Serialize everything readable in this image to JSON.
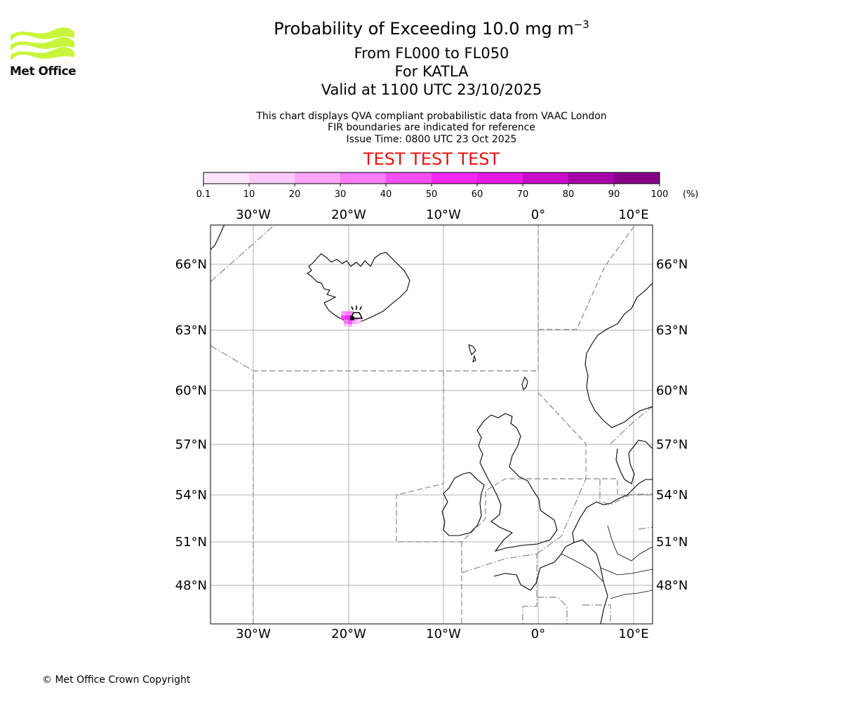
{
  "header": {
    "logo_text": "Met Office",
    "title_main": "Probability of Exceeding 10.0 mg m",
    "title_superscript": "−3",
    "title_level": "From FL000 to FL050",
    "title_volcano": "For KATLA",
    "title_valid": "Valid at 1100 UTC 23/10/2025"
  },
  "info": {
    "line1": "This chart displays QVA compliant probabilistic data from VAAC London",
    "line2": "FIR boundaries are indicated for reference",
    "line3": "Issue Time: 0800 UTC 23 Oct 2025"
  },
  "test_banner": "TEST TEST TEST",
  "colorbar": {
    "unit": "(%)",
    "ticks": [
      "0.1",
      "10",
      "20",
      "30",
      "40",
      "50",
      "60",
      "70",
      "80",
      "90",
      "100"
    ],
    "colors": [
      "#ffe6fd",
      "#fdcafb",
      "#fba6f8",
      "#f97cf6",
      "#f64ff4",
      "#f428f4",
      "#e61ae6",
      "#c70dc8",
      "#a600a9",
      "#860089",
      "#60005f"
    ]
  },
  "map": {
    "lon_labels": [
      "30°W",
      "20°W",
      "10°W",
      "0°",
      "10°E"
    ],
    "lat_labels": [
      "66°N",
      "63°N",
      "60°N",
      "57°N",
      "54°N",
      "51°N",
      "48°N"
    ],
    "volcano": "KATLA"
  },
  "footer": {
    "copyright": "© Met Office Crown Copyright"
  }
}
